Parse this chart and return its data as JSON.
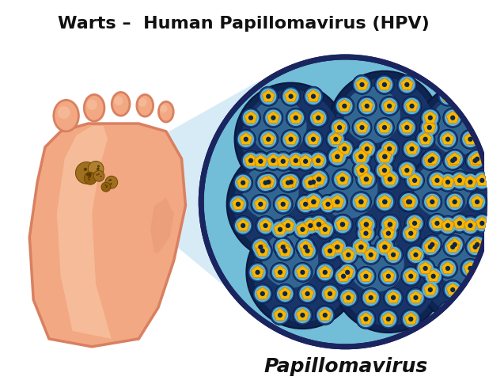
{
  "title": "Warts –  Human Papillomavirus (HPV)",
  "subtitle": "Papillomavirus",
  "title_fontsize": 16,
  "subtitle_fontsize": 18,
  "background_color": "#ffffff",
  "foot_color": "#F2A882",
  "foot_outline_color": "#D98060",
  "foot_highlight_color": "#F9C8AA",
  "circle_bg_color": "#72BDD8",
  "circle_border_color": "#1A2560",
  "zoom_fill": "#B0D8EE",
  "wart_color_1": "#A07830",
  "wart_color_2": "#8B6020",
  "virus_outer": "#0D2550",
  "virus_mid": "#1A4A80",
  "virus_highlight": "#4A9FC0",
  "capsomer_fill": "#F5B800",
  "capsomer_outline": "#E07800",
  "capsomer_center": "#0D2550"
}
